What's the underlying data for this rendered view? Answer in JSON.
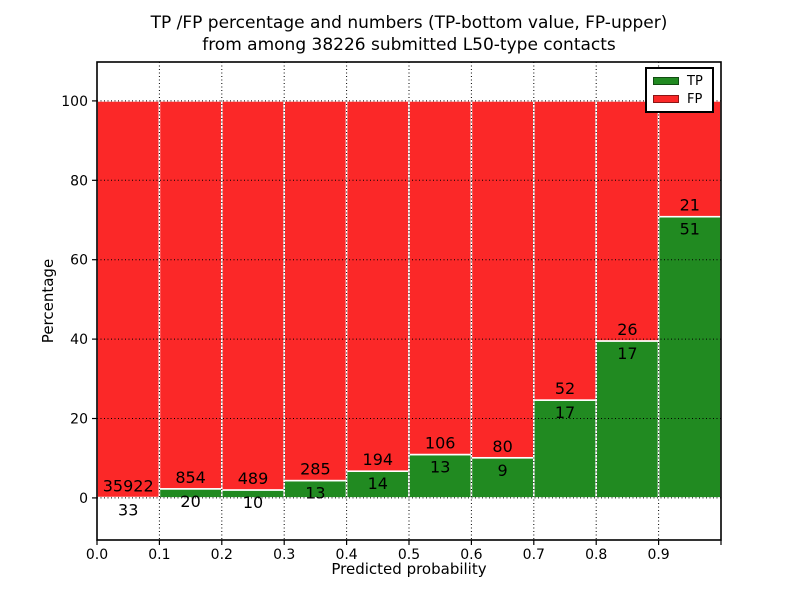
{
  "title": {
    "line1": "TP /FP percentage and numbers (TP-bottom value, FP-upper)",
    "line2": "from among 38226 submitted L50-type contacts"
  },
  "chart_data": {
    "type": "bar",
    "stacked": true,
    "normalized": "percent-of-bin-total",
    "title": "TP /FP percentage and numbers (TP-bottom value, FP-upper) from among 38226 submitted L50-type contacts",
    "xlabel": "Predicted probability",
    "ylabel": "Percentage",
    "bin_width": 0.1,
    "bin_starts": [
      0.0,
      0.1,
      0.2,
      0.3,
      0.4,
      0.5,
      0.6,
      0.7,
      0.8,
      0.9
    ],
    "series": [
      {
        "name": "TP",
        "color": "#218a21",
        "counts": [
          33,
          20,
          10,
          13,
          14,
          13,
          9,
          17,
          17,
          51
        ]
      },
      {
        "name": "FP",
        "color": "#fb2828",
        "counts": [
          35922,
          854,
          489,
          285,
          194,
          106,
          80,
          52,
          26,
          21
        ]
      }
    ],
    "xlim": [
      0,
      1
    ],
    "ylim": [
      -10.6,
      109.8
    ],
    "yticks": [
      0,
      20,
      40,
      60,
      80,
      100
    ],
    "xtick_labels": [
      "0.0",
      "0.1",
      "0.2",
      "0.3",
      "0.4",
      "0.5",
      "0.6",
      "0.7",
      "0.8",
      "0.9"
    ],
    "grid": true,
    "grid_style": "dotted",
    "legend": {
      "position": "upper-right",
      "entries": [
        {
          "label": "TP",
          "color": "#218a21"
        },
        {
          "label": "FP",
          "color": "#fb2828"
        }
      ]
    },
    "bar_edge_color": "#ffffff",
    "text_color": "#000000"
  }
}
